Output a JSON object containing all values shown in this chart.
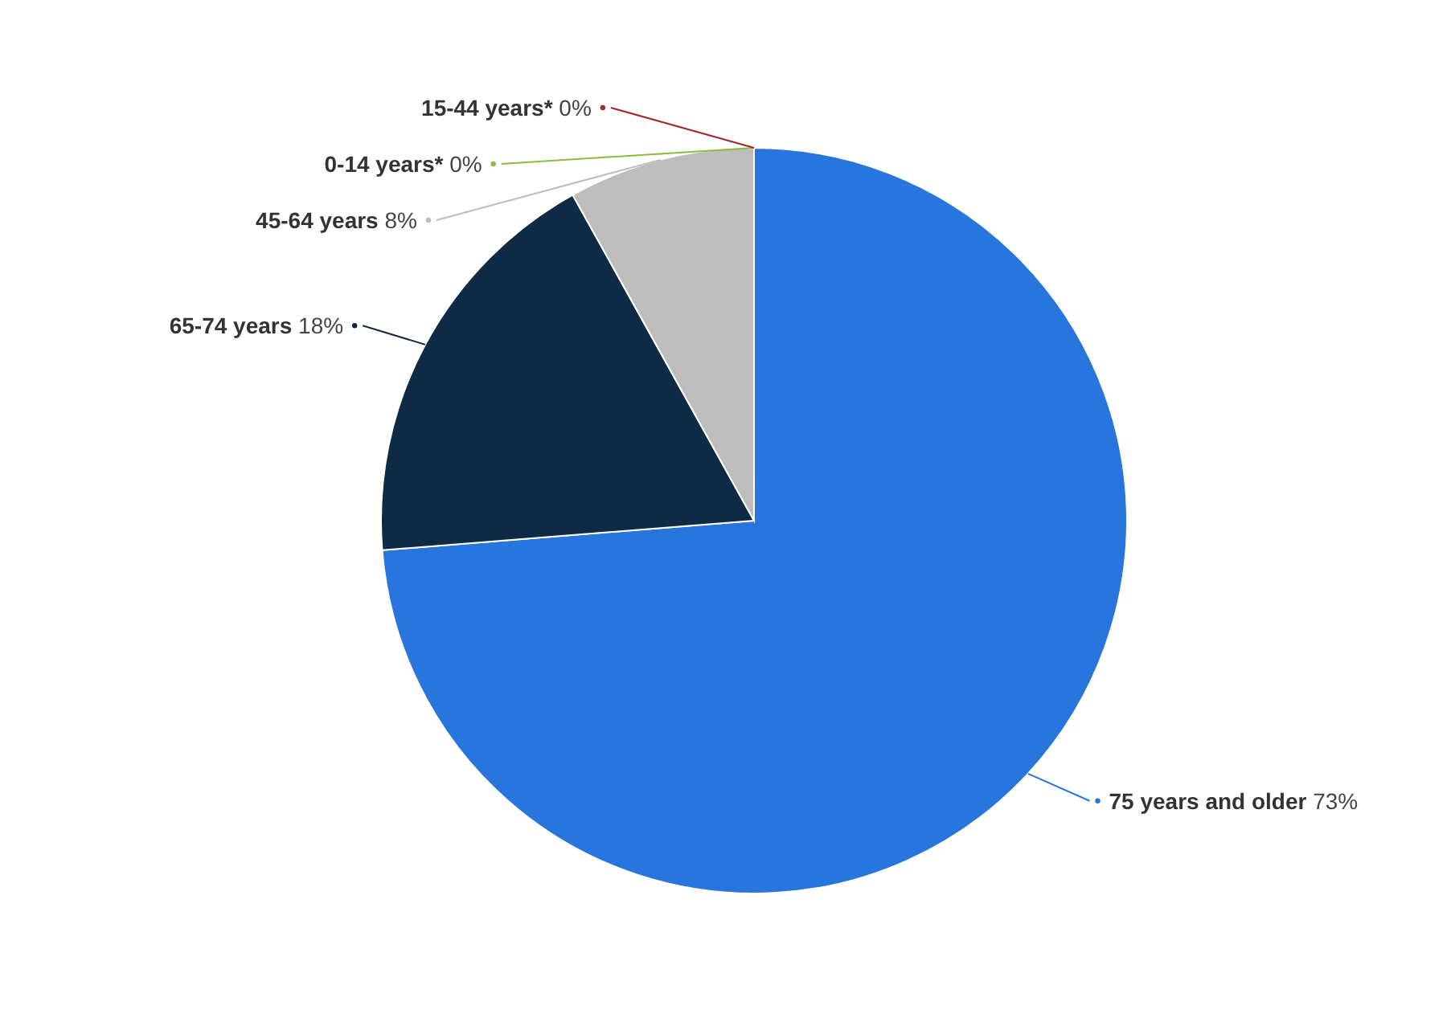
{
  "chart_data": {
    "type": "pie",
    "categories": [
      "75 years and older",
      "65-74 years",
      "45-64 years",
      "0-14 years*",
      "15-44 years*"
    ],
    "values": [
      73,
      18,
      8,
      0,
      0
    ],
    "value_labels": [
      "73%",
      "18%",
      "8%",
      "0%",
      "0%"
    ],
    "colors": [
      "#2876dd",
      "#0f2a44",
      "#bdbdbd",
      "#8bbd3a",
      "#a3282c"
    ]
  }
}
